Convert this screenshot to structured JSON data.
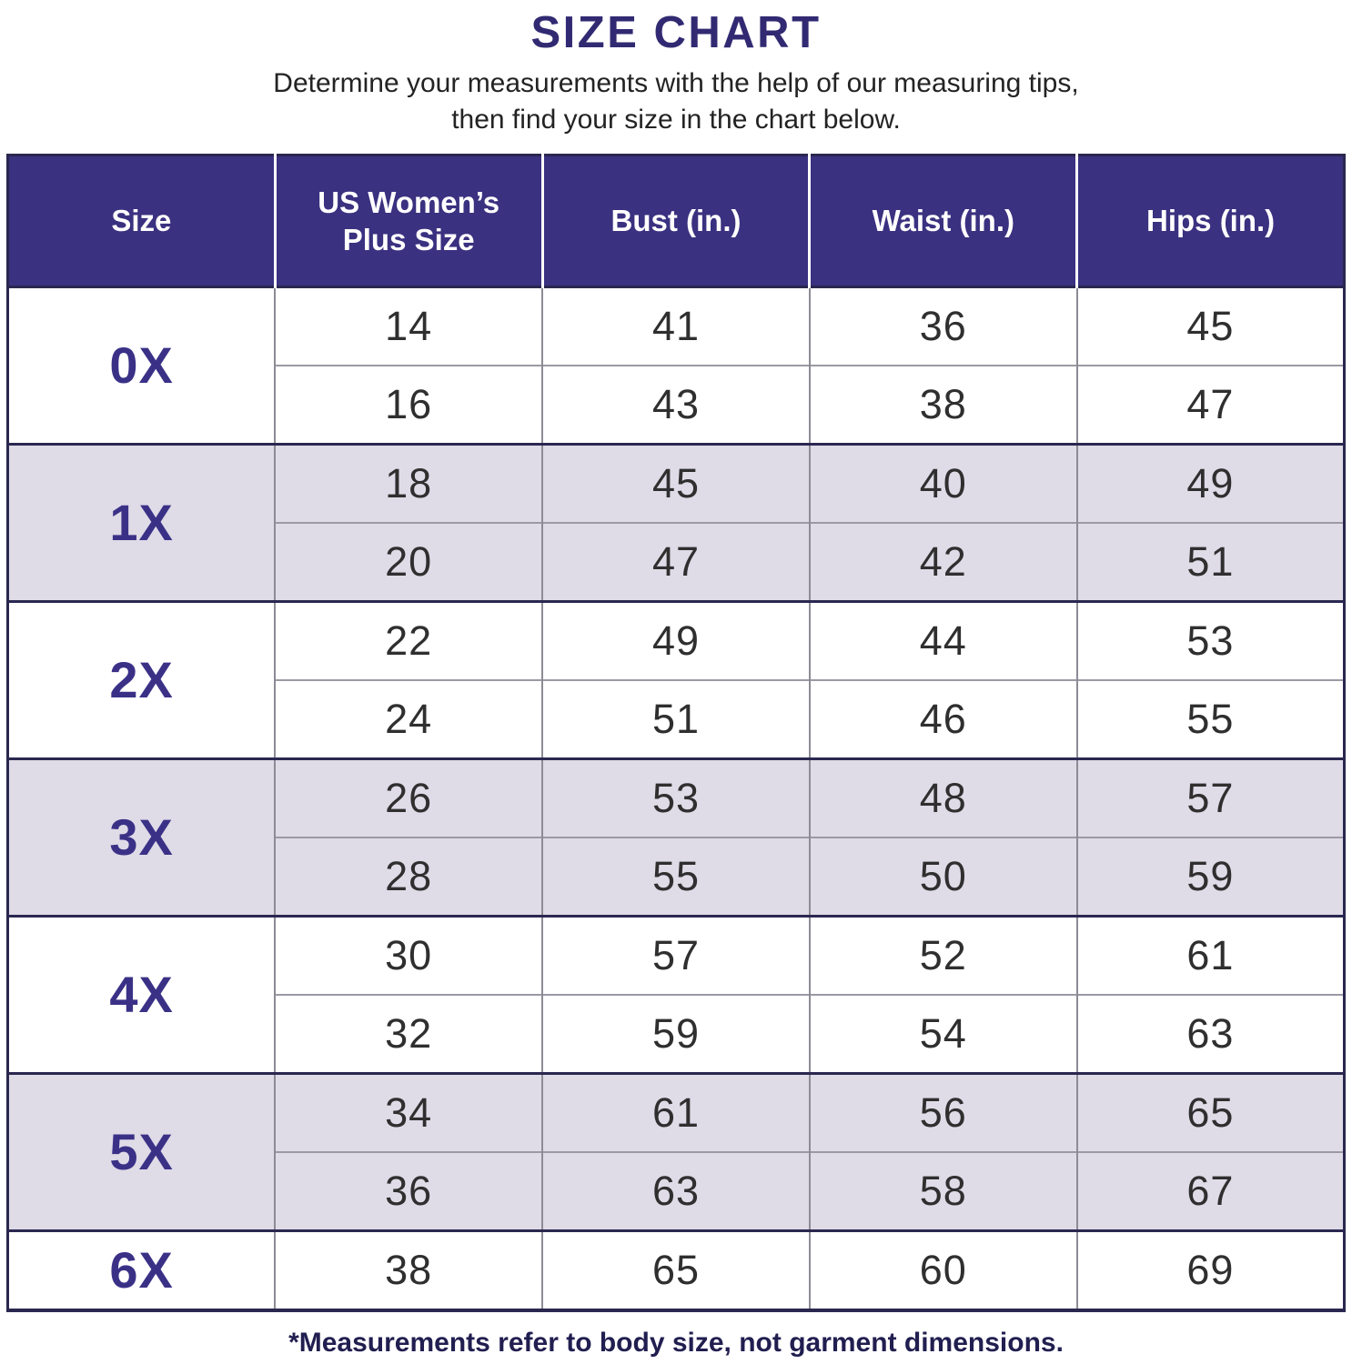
{
  "title": "SIZE CHART",
  "subtitle": {
    "line1": "Determine your measurements with the help of our measuring tips,",
    "line2": "then find your size in the chart below."
  },
  "table": {
    "headers": [
      "Size",
      "US Women’s Plus Size",
      "Bust (in.)",
      "Waist (in.)",
      "Hips (in.)"
    ],
    "column_keys": [
      "us-plus-size",
      "bust",
      "waist",
      "hips"
    ],
    "groups": [
      {
        "size": "0X",
        "shade": "white",
        "rows": [
          [
            "14",
            "41",
            "36",
            "45"
          ],
          [
            "16",
            "43",
            "38",
            "47"
          ]
        ]
      },
      {
        "size": "1X",
        "shade": "lavender",
        "rows": [
          [
            "18",
            "45",
            "40",
            "49"
          ],
          [
            "20",
            "47",
            "42",
            "51"
          ]
        ]
      },
      {
        "size": "2X",
        "shade": "white",
        "rows": [
          [
            "22",
            "49",
            "44",
            "53"
          ],
          [
            "24",
            "51",
            "46",
            "55"
          ]
        ]
      },
      {
        "size": "3X",
        "shade": "lavender",
        "rows": [
          [
            "26",
            "53",
            "48",
            "57"
          ],
          [
            "28",
            "55",
            "50",
            "59"
          ]
        ]
      },
      {
        "size": "4X",
        "shade": "white",
        "rows": [
          [
            "30",
            "57",
            "52",
            "61"
          ],
          [
            "32",
            "59",
            "54",
            "63"
          ]
        ]
      },
      {
        "size": "5X",
        "shade": "lavender",
        "rows": [
          [
            "34",
            "61",
            "56",
            "65"
          ],
          [
            "36",
            "63",
            "58",
            "67"
          ]
        ]
      },
      {
        "size": "6X",
        "shade": "white",
        "rows": [
          [
            "38",
            "65",
            "60",
            "69"
          ]
        ]
      }
    ]
  },
  "footnote": "*Measurements refer to body size, not garment dimensions.",
  "colors": {
    "header_bg": "#3A3180",
    "header_text": "#FFFFFF",
    "title_text": "#312A72",
    "size_label_text": "#3A3187",
    "value_text": "#2F2F2F",
    "lavender_row": "#DFDBE7",
    "white_row": "#FFFFFF",
    "subrow_divider": "#9B99A3",
    "column_divider": "#8D8B94",
    "group_divider": "#2A2750",
    "footnote_text": "#211E50"
  },
  "chart_data": {
    "type": "table",
    "title": "SIZE CHART",
    "columns": [
      "Size",
      "US Women’s Plus Size",
      "Bust (in.)",
      "Waist (in.)",
      "Hips (in.)"
    ],
    "rows": [
      [
        "0X",
        14,
        41,
        36,
        45
      ],
      [
        "0X",
        16,
        43,
        38,
        47
      ],
      [
        "1X",
        18,
        45,
        40,
        49
      ],
      [
        "1X",
        20,
        47,
        42,
        51
      ],
      [
        "2X",
        22,
        49,
        44,
        53
      ],
      [
        "2X",
        24,
        51,
        46,
        55
      ],
      [
        "3X",
        26,
        53,
        48,
        57
      ],
      [
        "3X",
        28,
        55,
        50,
        59
      ],
      [
        "4X",
        30,
        57,
        52,
        61
      ],
      [
        "4X",
        32,
        59,
        54,
        63
      ],
      [
        "5X",
        34,
        61,
        56,
        65
      ],
      [
        "5X",
        36,
        63,
        58,
        67
      ],
      [
        "6X",
        38,
        65,
        60,
        69
      ]
    ],
    "footnote": "*Measurements refer to body size, not garment dimensions."
  }
}
